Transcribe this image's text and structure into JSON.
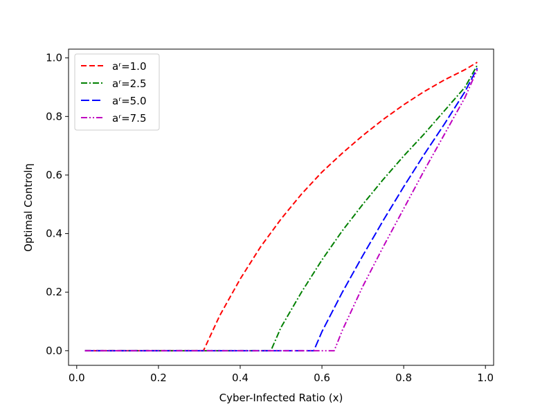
{
  "chart_data": {
    "type": "line",
    "title": "",
    "xlabel": "Cyber-Infected Ratio (x)",
    "ylabel": "Optimal Controlη",
    "xlim": [
      -0.02,
      1.02
    ],
    "ylim": [
      -0.05,
      1.03
    ],
    "xticks": [
      "0.0",
      "0.2",
      "0.4",
      "0.6",
      "0.8",
      "1.0"
    ],
    "yticks": [
      "0.0",
      "0.2",
      "0.4",
      "0.6",
      "0.8",
      "1.0"
    ],
    "grid": false,
    "legend_position": "top-left",
    "series": [
      {
        "name": "aʳ=1.0",
        "color": "#ff0000",
        "linestyle": "dashed",
        "x": [
          0.02,
          0.1,
          0.2,
          0.3,
          0.31,
          0.35,
          0.4,
          0.45,
          0.5,
          0.55,
          0.6,
          0.65,
          0.7,
          0.75,
          0.8,
          0.85,
          0.9,
          0.95,
          0.98
        ],
        "y": [
          0.0,
          0.0,
          0.0,
          0.0,
          0.0,
          0.12,
          0.245,
          0.355,
          0.45,
          0.535,
          0.61,
          0.675,
          0.735,
          0.79,
          0.84,
          0.885,
          0.925,
          0.96,
          0.985
        ]
      },
      {
        "name": "aʳ=2.5",
        "color": "#008000",
        "linestyle": "dashdot",
        "x": [
          0.02,
          0.2,
          0.4,
          0.475,
          0.5,
          0.55,
          0.6,
          0.65,
          0.7,
          0.75,
          0.8,
          0.85,
          0.9,
          0.95,
          0.98
        ],
        "y": [
          0.0,
          0.0,
          0.0,
          0.0,
          0.08,
          0.2,
          0.31,
          0.41,
          0.5,
          0.585,
          0.665,
          0.74,
          0.82,
          0.9,
          0.975
        ]
      },
      {
        "name": "aʳ=5.0",
        "color": "#0000ff",
        "linestyle": "longdash",
        "x": [
          0.02,
          0.2,
          0.4,
          0.5,
          0.58,
          0.6,
          0.65,
          0.7,
          0.75,
          0.8,
          0.85,
          0.9,
          0.95,
          0.98
        ],
        "y": [
          0.0,
          0.0,
          0.0,
          0.0,
          0.0,
          0.065,
          0.2,
          0.325,
          0.445,
          0.56,
          0.67,
          0.775,
          0.885,
          0.965
        ]
      },
      {
        "name": "aʳ=7.5",
        "color": "#bf00bf",
        "linestyle": "dashdotdot",
        "x": [
          0.02,
          0.2,
          0.4,
          0.6,
          0.63,
          0.65,
          0.7,
          0.75,
          0.8,
          0.85,
          0.9,
          0.95,
          0.98
        ],
        "y": [
          0.0,
          0.0,
          0.0,
          0.0,
          0.0,
          0.07,
          0.22,
          0.355,
          0.485,
          0.615,
          0.74,
          0.865,
          0.96
        ]
      }
    ]
  }
}
